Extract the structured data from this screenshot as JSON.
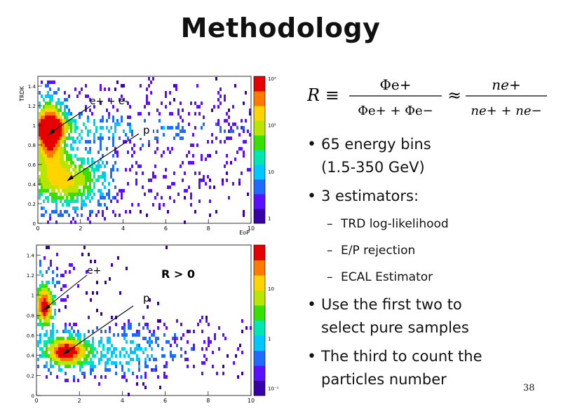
{
  "slide": {
    "title": "Methodology",
    "page_number": "38"
  },
  "formula": {
    "lhs": "R ≡",
    "frac1_num": "Φe+",
    "frac1_den": "Φe+ + Φe−",
    "approx": "≈",
    "frac2_num": "ne+",
    "frac2_den": "ne+ + ne−"
  },
  "bullets": [
    {
      "text_lines": [
        "65 energy bins",
        "(1.5-350 GeV)"
      ]
    },
    {
      "text_lines": [
        "3 estimators:"
      ],
      "subitems": [
        "TRD log-likelihood",
        "E/P rejection",
        "ECAL Estimator"
      ]
    },
    {
      "text_lines": [
        "Use the first two to",
        "select pure samples"
      ]
    },
    {
      "text_lines": [
        "The third to count the",
        "particles number"
      ]
    }
  ],
  "plots": {
    "top": {
      "ylabel": "TRDK",
      "xlabel": "EoP",
      "xticks": [
        "0",
        "2",
        "4",
        "6",
        "8",
        "10"
      ],
      "yticks": [
        "0",
        "0.2",
        "0.4",
        "0.6",
        "0.8",
        "1",
        "1.2",
        "1.4"
      ],
      "zticks": [
        "10³",
        "10²",
        "10",
        "1"
      ],
      "annotations": [
        "e+ + e-",
        "p"
      ]
    },
    "bottom": {
      "xticks": [
        "0",
        "2",
        "4",
        "6",
        "8",
        "10"
      ],
      "yticks": [
        "0",
        "0.2",
        "0.4",
        "0.6",
        "0.8",
        "1",
        "1.2",
        "1.4"
      ],
      "zticks": [
        "10",
        "1",
        "10⁻¹"
      ],
      "annotations": [
        "e+",
        "p",
        "R > 0"
      ]
    }
  },
  "colors": {
    "palette": [
      "#3a00a8",
      "#5a10ff",
      "#1f6bff",
      "#00c8ff",
      "#00e6b0",
      "#38e000",
      "#b8e600",
      "#ffd400",
      "#ff7a00",
      "#e60000"
    ]
  }
}
